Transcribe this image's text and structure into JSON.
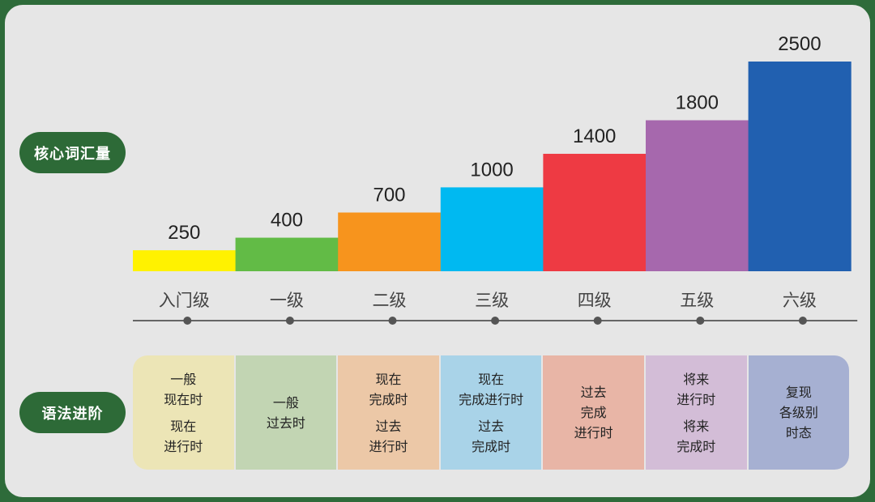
{
  "labels": {
    "vocab": "核心词汇量",
    "grammar": "语法进阶"
  },
  "chart_data": {
    "type": "bar",
    "categories": [
      "入门级",
      "一级",
      "二级",
      "三级",
      "四级",
      "五级",
      "六级"
    ],
    "values": [
      250,
      400,
      700,
      1000,
      1400,
      1800,
      2500
    ],
    "colors": [
      "#fff200",
      "#62bb46",
      "#f7941d",
      "#00b9f1",
      "#ee3a43",
      "#a668ad",
      "#2160b0"
    ],
    "ylim": [
      0,
      2500
    ],
    "grid": false,
    "axis_markers": true
  },
  "grammar": [
    {
      "bg": "#ece5b6",
      "groups": [
        [
          "一般",
          "现在时"
        ],
        [
          "现在",
          "进行时"
        ]
      ]
    },
    {
      "bg": "#c2d5b3",
      "groups": [
        [
          "一般",
          "过去时"
        ]
      ]
    },
    {
      "bg": "#ecc8a7",
      "groups": [
        [
          "现在",
          "完成时"
        ],
        [
          "过去",
          "进行时"
        ]
      ]
    },
    {
      "bg": "#a9d3e8",
      "groups": [
        [
          "现在",
          "完成进行时"
        ],
        [
          "过去",
          "完成时"
        ]
      ]
    },
    {
      "bg": "#e8b5a6",
      "groups": [
        [
          "过去",
          "完成",
          "进行时"
        ]
      ]
    },
    {
      "bg": "#d3bdd7",
      "groups": [
        [
          "将来",
          "进行时"
        ],
        [
          "将来",
          "完成时"
        ]
      ]
    },
    {
      "bg": "#a6b0d2",
      "groups": [
        [
          "复现",
          "各级别",
          "时态"
        ]
      ]
    }
  ]
}
